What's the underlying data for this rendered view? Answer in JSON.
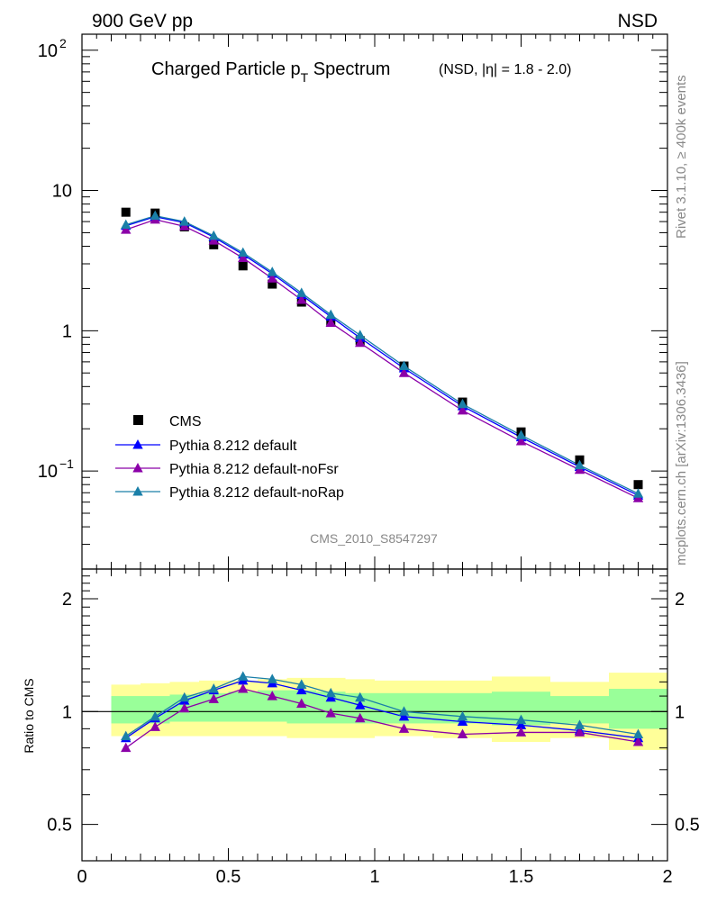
{
  "header": {
    "left": "900 GeV pp",
    "right": "NSD"
  },
  "side": {
    "rivet": "Rivet 3.1.10, ≥ 400k events",
    "mcplots": "mcplots.cern.ch [arXiv:1306.3436]"
  },
  "watermark": "CMS_2010_S8547297",
  "title": {
    "main_pre": "Charged Particle p",
    "main_sub": "T",
    "main_post": " Spectrum",
    "qual": "(NSD, |η| = 1.8 - 2.0)"
  },
  "chart_data": {
    "type": "scatter",
    "x": [
      0.15,
      0.25,
      0.35,
      0.45,
      0.55,
      0.65,
      0.75,
      0.85,
      0.95,
      1.1,
      1.3,
      1.5,
      1.7,
      1.9
    ],
    "xlim": [
      0,
      2
    ],
    "xticks": [
      "0",
      "0.5",
      "1",
      "1.5",
      "2"
    ],
    "main": {
      "yscale": "log",
      "ylim": [
        0.02,
        130
      ],
      "yticks": [
        {
          "value": 0.1,
          "base": "10",
          "exp": "−1"
        },
        {
          "value": 1,
          "base": "1",
          "exp": ""
        },
        {
          "value": 10,
          "base": "10",
          "exp": ""
        },
        {
          "value": 100,
          "base": "10",
          "exp": "2"
        }
      ],
      "series": [
        {
          "name": "CMS",
          "marker": "square",
          "color": "#000000",
          "values": [
            7.0,
            6.9,
            5.5,
            4.1,
            2.9,
            2.15,
            1.6,
            1.15,
            0.85,
            0.56,
            0.31,
            0.19,
            0.12,
            0.08
          ]
        },
        {
          "name": "Pythia 8.212 default",
          "marker": "triangle",
          "color": "#0000ff",
          "values": [
            5.6,
            6.5,
            5.9,
            4.65,
            3.5,
            2.55,
            1.8,
            1.26,
            0.89,
            0.54,
            0.29,
            0.174,
            0.107,
            0.067
          ]
        },
        {
          "name": "Pythia 8.212 default-noFsr",
          "marker": "triangle",
          "color": "#8b00a8",
          "values": [
            5.25,
            6.2,
            5.55,
            4.4,
            3.3,
            2.36,
            1.66,
            1.14,
            0.82,
            0.5,
            0.27,
            0.163,
            0.102,
            0.064
          ]
        },
        {
          "name": "Pythia 8.212 default-noRap",
          "marker": "triangle",
          "color": "#1a7fa8",
          "values": [
            5.7,
            6.6,
            6.0,
            4.75,
            3.6,
            2.62,
            1.86,
            1.3,
            0.93,
            0.56,
            0.3,
            0.18,
            0.11,
            0.069
          ]
        }
      ]
    },
    "ratio": {
      "ylabel": "Ratio to CMS",
      "yscale": "log",
      "ylim": [
        0.4,
        2.4
      ],
      "yticks": [
        "0.5",
        "1",
        "2"
      ],
      "ytick_values": [
        0.5,
        1,
        2
      ],
      "band_edges": [
        0.1,
        0.2,
        0.3,
        0.4,
        0.5,
        0.6,
        0.7,
        0.8,
        0.9,
        1.0,
        1.2,
        1.4,
        1.6,
        1.8,
        2.0
      ],
      "band_inner": [
        [
          0.93,
          1.1
        ],
        [
          0.93,
          1.1
        ],
        [
          0.94,
          1.11
        ],
        [
          0.94,
          1.12
        ],
        [
          0.94,
          1.13
        ],
        [
          0.94,
          1.14
        ],
        [
          0.93,
          1.14
        ],
        [
          0.93,
          1.13
        ],
        [
          0.93,
          1.12
        ],
        [
          0.93,
          1.12
        ],
        [
          0.93,
          1.12
        ],
        [
          0.92,
          1.13
        ],
        [
          0.93,
          1.1
        ],
        [
          0.9,
          1.15
        ]
      ],
      "band_outer": [
        [
          0.86,
          1.18
        ],
        [
          0.86,
          1.19
        ],
        [
          0.86,
          1.2
        ],
        [
          0.86,
          1.21
        ],
        [
          0.86,
          1.21
        ],
        [
          0.86,
          1.22
        ],
        [
          0.85,
          1.23
        ],
        [
          0.85,
          1.23
        ],
        [
          0.85,
          1.22
        ],
        [
          0.86,
          1.21
        ],
        [
          0.85,
          1.21
        ],
        [
          0.83,
          1.24
        ],
        [
          0.85,
          1.2
        ],
        [
          0.79,
          1.27
        ]
      ],
      "series": [
        {
          "name": "Pythia 8.212 default",
          "color": "#0000ff",
          "values": [
            0.85,
            0.96,
            1.07,
            1.14,
            1.21,
            1.19,
            1.14,
            1.09,
            1.04,
            0.97,
            0.94,
            0.92,
            0.89,
            0.85
          ]
        },
        {
          "name": "Pythia 8.212 default-noFsr",
          "color": "#8b00a8",
          "values": [
            0.8,
            0.91,
            1.02,
            1.08,
            1.15,
            1.1,
            1.05,
            0.99,
            0.96,
            0.9,
            0.87,
            0.88,
            0.88,
            0.83
          ]
        },
        {
          "name": "Pythia 8.212 default-noRap",
          "color": "#1a7fa8",
          "values": [
            0.86,
            0.97,
            1.09,
            1.15,
            1.24,
            1.22,
            1.18,
            1.12,
            1.09,
            1.0,
            0.97,
            0.95,
            0.92,
            0.87
          ]
        }
      ]
    }
  }
}
